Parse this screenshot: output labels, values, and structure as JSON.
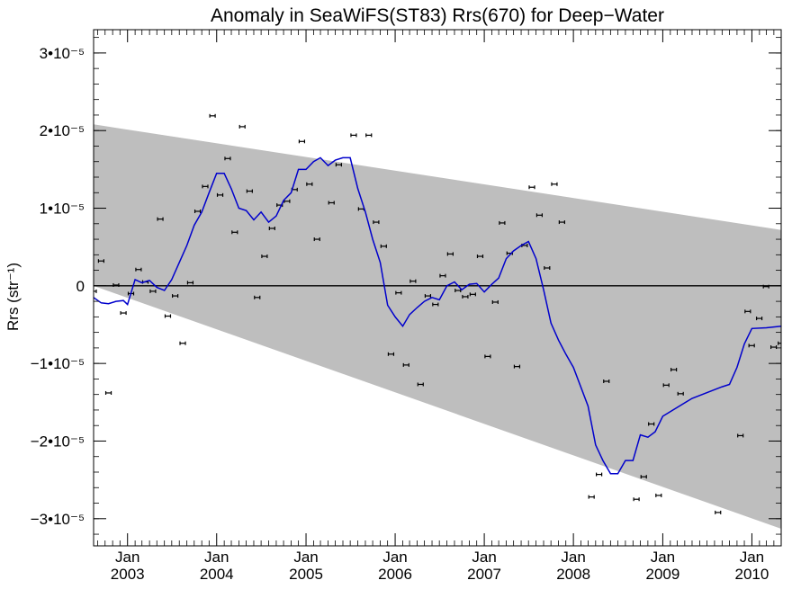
{
  "chart_data": {
    "type": "scatter",
    "title": "Anomaly in SeaWiFS(ST83) Rrs(670) for Deep−Water",
    "ylabel": "Rrs (str⁻¹)",
    "xlabel": "",
    "x_range": [
      "2002-08-15",
      "2010-05-01"
    ],
    "ylim": [
      -3.35e-05,
      3.3e-05
    ],
    "y_ticks": [
      {
        "value": 3e-05,
        "label": "3•10⁻⁵"
      },
      {
        "value": 2e-05,
        "label": "2•10⁻⁵"
      },
      {
        "value": 1e-05,
        "label": "1•10⁻⁵"
      },
      {
        "value": 0,
        "label": "0"
      },
      {
        "value": -1e-05,
        "label": "−1•10⁻⁵"
      },
      {
        "value": -2e-05,
        "label": "−2•10⁻⁵"
      },
      {
        "value": -3e-05,
        "label": "−3•10⁻⁵"
      }
    ],
    "x_ticks": [
      {
        "date": "2003-01-01",
        "month": "Jan",
        "year": "2003"
      },
      {
        "date": "2004-01-01",
        "month": "Jan",
        "year": "2004"
      },
      {
        "date": "2005-01-01",
        "month": "Jan",
        "year": "2005"
      },
      {
        "date": "2006-01-01",
        "month": "Jan",
        "year": "2006"
      },
      {
        "date": "2007-01-01",
        "month": "Jan",
        "year": "2007"
      },
      {
        "date": "2008-01-01",
        "month": "Jan",
        "year": "2008"
      },
      {
        "date": "2009-01-01",
        "month": "Jan",
        "year": "2009"
      },
      {
        "date": "2010-01-01",
        "month": "Jan",
        "year": "2010"
      }
    ],
    "uncertainty_band": {
      "upper": [
        [
          "2002-08-15",
          2.08e-05
        ],
        [
          "2010-05-01",
          7.2e-06
        ]
      ],
      "lower": [
        [
          "2002-08-15",
          0.0
        ],
        [
          "2010-05-01",
          -3.13e-05
        ]
      ],
      "color": "#bebebe"
    },
    "zero_line": 0,
    "series": [
      {
        "kind": "points",
        "color": "#000000",
        "data": [
          [
            "2002-08-15",
            -7e-07
          ],
          [
            "2002-09-15",
            3.2e-06
          ],
          [
            "2002-10-15",
            -1.38e-05
          ],
          [
            "2002-11-15",
            1e-07
          ],
          [
            "2002-12-15",
            -3.5e-06
          ],
          [
            "2003-01-15",
            -1e-06
          ],
          [
            "2003-02-15",
            2.1e-06
          ],
          [
            "2003-03-15",
            5e-07
          ],
          [
            "2003-04-15",
            -7e-07
          ],
          [
            "2003-05-15",
            8.6e-06
          ],
          [
            "2003-06-15",
            -3.9e-06
          ],
          [
            "2003-07-15",
            -1.3e-06
          ],
          [
            "2003-08-15",
            -7.4e-06
          ],
          [
            "2003-09-15",
            4e-07
          ],
          [
            "2003-10-15",
            9.6e-06
          ],
          [
            "2003-11-15",
            1.28e-05
          ],
          [
            "2003-12-15",
            2.19e-05
          ],
          [
            "2004-01-15",
            1.17e-05
          ],
          [
            "2004-02-15",
            1.64e-05
          ],
          [
            "2004-03-15",
            6.9e-06
          ],
          [
            "2004-04-15",
            2.05e-05
          ],
          [
            "2004-05-15",
            1.22e-05
          ],
          [
            "2004-06-15",
            -1.5e-06
          ],
          [
            "2004-07-15",
            3.8e-06
          ],
          [
            "2004-08-15",
            7.4e-06
          ],
          [
            "2004-09-15",
            1.04e-05
          ],
          [
            "2004-10-15",
            1.09e-05
          ],
          [
            "2004-11-15",
            1.24e-05
          ],
          [
            "2004-12-15",
            1.86e-05
          ],
          [
            "2005-01-15",
            1.31e-05
          ],
          [
            "2005-02-15",
            6e-06
          ],
          [
            "2005-04-15",
            1.07e-05
          ],
          [
            "2005-05-15",
            1.56e-05
          ],
          [
            "2005-07-15",
            1.94e-05
          ],
          [
            "2005-08-15",
            9.9e-06
          ],
          [
            "2005-09-15",
            1.94e-05
          ],
          [
            "2005-10-15",
            8.2e-06
          ],
          [
            "2005-11-15",
            5.1e-06
          ],
          [
            "2005-12-15",
            -8.8e-06
          ],
          [
            "2006-01-15",
            -9e-07
          ],
          [
            "2006-02-15",
            -1.02e-05
          ],
          [
            "2006-03-15",
            6e-07
          ],
          [
            "2006-04-15",
            -1.27e-05
          ],
          [
            "2006-05-15",
            -1.3e-06
          ],
          [
            "2006-06-15",
            -2.4e-06
          ],
          [
            "2006-07-15",
            1.3e-06
          ],
          [
            "2006-08-15",
            4.1e-06
          ],
          [
            "2006-09-15",
            -6e-07
          ],
          [
            "2006-10-15",
            -1.4e-06
          ],
          [
            "2006-11-15",
            -1.1e-06
          ],
          [
            "2006-12-15",
            3.8e-06
          ],
          [
            "2007-01-15",
            -9.1e-06
          ],
          [
            "2007-02-15",
            -2.1e-06
          ],
          [
            "2007-03-15",
            8.1e-06
          ],
          [
            "2007-04-15",
            4.2e-06
          ],
          [
            "2007-05-15",
            -1.04e-05
          ],
          [
            "2007-06-15",
            5.2e-06
          ],
          [
            "2007-07-15",
            1.27e-05
          ],
          [
            "2007-08-15",
            9.1e-06
          ],
          [
            "2007-09-15",
            2.3e-06
          ],
          [
            "2007-10-15",
            1.31e-05
          ],
          [
            "2007-11-15",
            8.2e-06
          ],
          [
            "2008-03-15",
            -2.72e-05
          ],
          [
            "2008-04-15",
            -2.43e-05
          ],
          [
            "2008-05-15",
            -1.23e-05
          ],
          [
            "2008-09-15",
            -2.75e-05
          ],
          [
            "2008-10-15",
            -2.46e-05
          ],
          [
            "2008-11-15",
            -1.78e-05
          ],
          [
            "2008-12-15",
            -2.7e-05
          ],
          [
            "2009-01-15",
            -1.28e-05
          ],
          [
            "2009-02-15",
            -1.08e-05
          ],
          [
            "2009-03-15",
            -1.39e-05
          ],
          [
            "2009-08-15",
            -2.92e-05
          ],
          [
            "2009-11-15",
            -1.93e-05
          ],
          [
            "2009-12-15",
            -3.3e-06
          ],
          [
            "2009-12-31",
            -7.7e-06
          ],
          [
            "2010-01-31",
            -4.2e-06
          ],
          [
            "2010-02-28",
            -1e-07
          ],
          [
            "2010-03-31",
            -7.9e-06
          ],
          [
            "2010-04-30",
            -7.4e-06
          ]
        ]
      },
      {
        "kind": "line",
        "color": "#0000cc",
        "data": [
          [
            "2002-08-15",
            -1.5e-06
          ],
          [
            "2002-09-15",
            -2.2e-06
          ],
          [
            "2002-10-15",
            -2.3e-06
          ],
          [
            "2002-11-15",
            -2e-06
          ],
          [
            "2002-12-15",
            -1.9e-06
          ],
          [
            "2003-01-01",
            -2.4e-06
          ],
          [
            "2003-02-01",
            8e-07
          ],
          [
            "2003-03-01",
            4e-07
          ],
          [
            "2003-04-01",
            7e-07
          ],
          [
            "2003-05-01",
            -2e-07
          ],
          [
            "2003-06-01",
            -6e-07
          ],
          [
            "2003-07-01",
            8e-07
          ],
          [
            "2003-08-01",
            3e-06
          ],
          [
            "2003-09-01",
            5.2e-06
          ],
          [
            "2003-10-01",
            7.8e-06
          ],
          [
            "2003-11-01",
            9.5e-06
          ],
          [
            "2003-12-01",
            1.2e-05
          ],
          [
            "2004-01-01",
            1.45e-05
          ],
          [
            "2004-02-01",
            1.45e-05
          ],
          [
            "2004-03-01",
            1.25e-05
          ],
          [
            "2004-04-01",
            1e-05
          ],
          [
            "2004-05-01",
            9.7e-06
          ],
          [
            "2004-06-01",
            8.5e-06
          ],
          [
            "2004-07-01",
            9.5e-06
          ],
          [
            "2004-08-01",
            8.2e-06
          ],
          [
            "2004-09-01",
            9e-06
          ],
          [
            "2004-10-01",
            1.1e-05
          ],
          [
            "2004-11-01",
            1.2e-05
          ],
          [
            "2004-12-01",
            1.5e-05
          ],
          [
            "2005-01-01",
            1.5e-05
          ],
          [
            "2005-02-01",
            1.6e-05
          ],
          [
            "2005-03-01",
            1.65e-05
          ],
          [
            "2005-04-01",
            1.55e-05
          ],
          [
            "2005-05-01",
            1.62e-05
          ],
          [
            "2005-06-01",
            1.65e-05
          ],
          [
            "2005-07-01",
            1.65e-05
          ],
          [
            "2005-08-01",
            1.25e-05
          ],
          [
            "2005-09-01",
            9.5e-06
          ],
          [
            "2005-10-01",
            6e-06
          ],
          [
            "2005-11-01",
            3e-06
          ],
          [
            "2005-12-01",
            -2.5e-06
          ],
          [
            "2006-01-01",
            -4e-06
          ],
          [
            "2006-02-01",
            -5.2e-06
          ],
          [
            "2006-03-01",
            -3.7e-06
          ],
          [
            "2006-04-01",
            -2.8e-06
          ],
          [
            "2006-05-01",
            -2e-06
          ],
          [
            "2006-06-01",
            -1.5e-06
          ],
          [
            "2006-07-01",
            -1.8e-06
          ],
          [
            "2006-08-01",
            0.0
          ],
          [
            "2006-09-01",
            5e-07
          ],
          [
            "2006-10-01",
            -5e-07
          ],
          [
            "2006-11-01",
            2e-07
          ],
          [
            "2006-12-01",
            3e-07
          ],
          [
            "2007-01-01",
            -8e-07
          ],
          [
            "2007-02-01",
            2e-07
          ],
          [
            "2007-03-01",
            1e-06
          ],
          [
            "2007-04-01",
            3.5e-06
          ],
          [
            "2007-05-01",
            4.5e-06
          ],
          [
            "2007-06-01",
            5.2e-06
          ],
          [
            "2007-07-01",
            5.7e-06
          ],
          [
            "2007-08-01",
            3.5e-06
          ],
          [
            "2007-09-01",
            -5e-07
          ],
          [
            "2007-10-01",
            -4.8e-06
          ],
          [
            "2007-11-01",
            -7e-06
          ],
          [
            "2007-12-01",
            -8.8e-06
          ],
          [
            "2008-01-01",
            -1.05e-05
          ],
          [
            "2008-03-01",
            -1.55e-05
          ],
          [
            "2008-04-01",
            -2.05e-05
          ],
          [
            "2008-05-01",
            -2.25e-05
          ],
          [
            "2008-06-01",
            -2.42e-05
          ],
          [
            "2008-07-01",
            -2.42e-05
          ],
          [
            "2008-08-01",
            -2.25e-05
          ],
          [
            "2008-09-01",
            -2.25e-05
          ],
          [
            "2008-10-01",
            -1.92e-05
          ],
          [
            "2008-11-01",
            -1.95e-05
          ],
          [
            "2008-12-01",
            -1.88e-05
          ],
          [
            "2009-01-01",
            -1.68e-05
          ],
          [
            "2009-05-01",
            -1.45e-05
          ],
          [
            "2009-09-01",
            -1.3e-05
          ],
          [
            "2009-10-01",
            -1.27e-05
          ],
          [
            "2009-11-01",
            -1.05e-05
          ],
          [
            "2009-12-01",
            -7.5e-06
          ],
          [
            "2010-01-01",
            -5.5e-06
          ],
          [
            "2010-03-01",
            -5.4e-06
          ],
          [
            "2010-05-01",
            -5.2e-06
          ]
        ]
      }
    ],
    "grid": false
  }
}
